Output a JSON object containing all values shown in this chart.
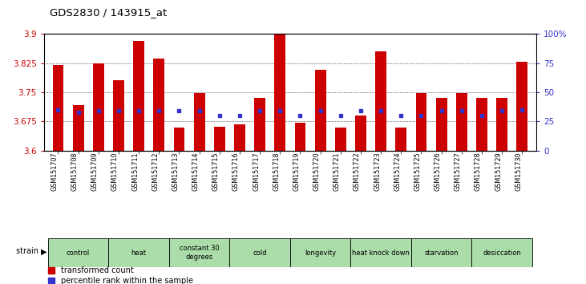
{
  "title": "GDS2830 / 143915_at",
  "samples": [
    "GSM151707",
    "GSM151708",
    "GSM151709",
    "GSM151710",
    "GSM151711",
    "GSM151712",
    "GSM151713",
    "GSM151714",
    "GSM151715",
    "GSM151716",
    "GSM151717",
    "GSM151718",
    "GSM151719",
    "GSM151720",
    "GSM151721",
    "GSM151722",
    "GSM151723",
    "GSM151724",
    "GSM151725",
    "GSM151726",
    "GSM151727",
    "GSM151728",
    "GSM151729",
    "GSM151730"
  ],
  "bar_values": [
    3.82,
    3.718,
    3.824,
    3.782,
    3.883,
    3.836,
    3.66,
    3.748,
    3.662,
    3.668,
    3.735,
    3.9,
    3.672,
    3.808,
    3.66,
    3.69,
    3.855,
    3.66,
    3.748,
    3.735,
    3.748,
    3.735,
    3.735,
    3.828
  ],
  "percentile_values": [
    35,
    33,
    34,
    34,
    34,
    34,
    34,
    34,
    30,
    30,
    34,
    34,
    30,
    34,
    30,
    34,
    34,
    30,
    30,
    34,
    34,
    30,
    34,
    35
  ],
  "groups": [
    {
      "name": "control",
      "start": 0,
      "end": 2
    },
    {
      "name": "heat",
      "start": 3,
      "end": 5
    },
    {
      "name": "constant 30\ndegrees",
      "start": 6,
      "end": 8
    },
    {
      "name": "cold",
      "start": 9,
      "end": 11
    },
    {
      "name": "longevity",
      "start": 12,
      "end": 14
    },
    {
      "name": "heat knock down",
      "start": 15,
      "end": 17
    },
    {
      "name": "starvation",
      "start": 18,
      "end": 20
    },
    {
      "name": "desiccation",
      "start": 21,
      "end": 23
    }
  ],
  "group_color": "#aaddaa",
  "ylim_left": [
    3.6,
    3.9
  ],
  "ylim_right": [
    0,
    100
  ],
  "yticks_left": [
    3.6,
    3.675,
    3.75,
    3.825,
    3.9
  ],
  "yticks_right": [
    0,
    25,
    50,
    75,
    100
  ],
  "bar_color": "#cc0000",
  "dot_color": "#3333cc",
  "bar_width": 0.55,
  "baseline": 3.6
}
